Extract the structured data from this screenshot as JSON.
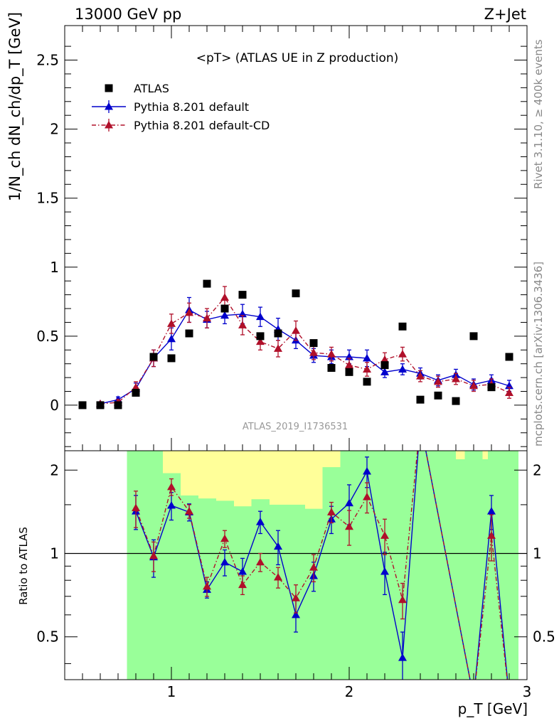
{
  "header": {
    "left": "13000 GeV pp",
    "right": "Z+Jet"
  },
  "side_labels": {
    "rivet": "Rivet 3.1.10, ≥ 400k events",
    "mcplots": "mcplots.cern.ch [arXiv:1306.3436]"
  },
  "chart_data": [
    {
      "type": "scatter",
      "panel": "main",
      "title": "<pT> (ATLAS UE in Z production)",
      "ylabel": "1/N_ch dN_ch/dp_T [GeV]",
      "watermark": "ATLAS_2019_I1736531",
      "ylim": [
        -0.33,
        2.75
      ],
      "yticks": [
        0,
        0.5,
        1,
        1.5,
        2,
        2.5
      ],
      "ytick_labels": [
        "0",
        "0.5",
        "1",
        "1.5",
        "2",
        "2.5"
      ],
      "xlim": [
        0.4,
        3.0
      ],
      "x": [
        0.5,
        0.6,
        0.7,
        0.8,
        0.9,
        1.0,
        1.1,
        1.2,
        1.3,
        1.4,
        1.5,
        1.6,
        1.7,
        1.8,
        1.9,
        2.0,
        2.1,
        2.2,
        2.3,
        2.4,
        2.5,
        2.6,
        2.7,
        2.8,
        2.9
      ],
      "legend_position": "top-left",
      "series": [
        {
          "name": "ATLAS",
          "color": "#000000",
          "marker": "square",
          "values": [
            0.0,
            0.0,
            0.0,
            0.09,
            0.35,
            0.34,
            0.52,
            0.88,
            0.7,
            0.8,
            0.5,
            0.52,
            0.81,
            0.45,
            0.27,
            0.24,
            0.17,
            0.29,
            0.57,
            0.04,
            0.07,
            0.03,
            0.5,
            0.13,
            0.35
          ]
        },
        {
          "name": "Pythia 8.201 default",
          "color": "#0000cc",
          "marker": "triangle",
          "x": [
            0.6,
            0.7,
            0.8,
            0.9,
            1.0,
            1.1,
            1.2,
            1.3,
            1.4,
            1.5,
            1.6,
            1.7,
            1.8,
            1.9,
            2.0,
            2.1,
            2.2,
            2.3,
            2.4,
            2.5,
            2.6,
            2.7,
            2.8,
            2.9
          ],
          "values": [
            0.01,
            0.04,
            0.12,
            0.34,
            0.48,
            0.69,
            0.62,
            0.65,
            0.66,
            0.64,
            0.55,
            0.47,
            0.36,
            0.35,
            0.35,
            0.34,
            0.24,
            0.26,
            0.23,
            0.18,
            0.22,
            0.15,
            0.18,
            0.14
          ],
          "errors": [
            0.01,
            0.02,
            0.04,
            0.06,
            0.08,
            0.09,
            0.06,
            0.06,
            0.07,
            0.07,
            0.08,
            0.06,
            0.05,
            0.05,
            0.05,
            0.06,
            0.04,
            0.04,
            0.04,
            0.04,
            0.04,
            0.04,
            0.04,
            0.04
          ],
          "line": "solid"
        },
        {
          "name": "Pythia 8.201 default-CD",
          "color": "#b0102a",
          "marker": "triangle",
          "x": [
            0.6,
            0.7,
            0.8,
            0.9,
            1.0,
            1.1,
            1.2,
            1.3,
            1.4,
            1.5,
            1.6,
            1.7,
            1.8,
            1.9,
            2.0,
            2.1,
            2.2,
            2.3,
            2.4,
            2.5,
            2.6,
            2.7,
            2.8,
            2.9
          ],
          "values": [
            0.01,
            0.02,
            0.13,
            0.34,
            0.59,
            0.67,
            0.63,
            0.78,
            0.58,
            0.46,
            0.41,
            0.54,
            0.38,
            0.37,
            0.29,
            0.26,
            0.33,
            0.37,
            0.21,
            0.17,
            0.19,
            0.14,
            0.15,
            0.09
          ],
          "errors": [
            0.01,
            0.02,
            0.04,
            0.06,
            0.07,
            0.07,
            0.07,
            0.08,
            0.07,
            0.06,
            0.06,
            0.07,
            0.05,
            0.05,
            0.05,
            0.05,
            0.05,
            0.05,
            0.04,
            0.04,
            0.04,
            0.04,
            0.04,
            0.04
          ],
          "line": "dash-dot"
        }
      ]
    },
    {
      "type": "line",
      "panel": "ratio",
      "ylabel": "Ratio to ATLAS",
      "xlabel": "p_T [GeV]",
      "ylim": [
        0.35,
        2.35
      ],
      "yscale": "log",
      "yticks": [
        0.5,
        1,
        2
      ],
      "ytick_labels": [
        "0.5",
        "1",
        "2"
      ],
      "xlim": [
        0.4,
        3.0
      ],
      "xticks": [
        1,
        2,
        3
      ],
      "xtick_labels": [
        "1",
        "2",
        "3"
      ],
      "reference_line": 1,
      "bands": {
        "bin_edges": [
          0.75,
          0.85,
          0.95,
          1.05,
          1.15,
          1.25,
          1.35,
          1.45,
          1.55,
          1.65,
          1.75,
          1.85,
          1.95,
          2.05,
          2.15,
          2.25,
          2.35,
          2.45,
          2.55,
          2.65,
          2.75,
          2.85,
          2.95
        ],
        "green_lo": [
          0.35,
          0.35,
          0.35,
          0.35,
          0.35,
          0.35,
          0.35,
          0.35,
          0.35,
          0.35,
          0.35,
          0.35,
          0.35,
          0.35,
          0.35,
          0.35,
          0.35,
          0.35,
          0.35,
          0.35,
          0.35,
          0.35
        ],
        "green_hi": [
          2.35,
          2.35,
          1.95,
          1.62,
          1.58,
          1.55,
          1.48,
          1.57,
          1.5,
          1.5,
          1.45,
          2.05,
          2.35,
          2.35,
          2.35,
          2.35,
          2.35,
          2.35,
          2.35,
          2.35,
          2.35,
          2.35
        ],
        "yellow_lo": [
          0.35,
          0.35,
          0.35,
          0.35,
          0.35,
          0.64,
          0.65,
          0.62,
          0.54,
          0.55,
          0.69,
          0.35,
          0.35,
          0.35,
          0.35,
          0.35,
          0.35,
          0.35,
          0.35,
          0.35,
          0.35,
          0.35
        ],
        "yellow_hi": [
          2.35,
          2.35,
          2.35,
          2.35,
          2.35,
          2.35,
          2.35,
          2.35,
          2.35,
          2.35,
          2.35,
          2.35,
          2.35,
          2.35,
          2.35,
          2.35,
          2.35,
          2.35,
          2.35,
          2.35,
          2.35,
          2.35
        ]
      },
      "series": [
        {
          "name": "Pythia 8.201 default",
          "color": "#0000cc",
          "x": [
            0.8,
            0.9,
            1.0,
            1.1,
            1.2,
            1.3,
            1.4,
            1.5,
            1.6,
            1.7,
            1.8,
            1.9,
            2.0,
            2.1,
            2.2,
            2.3,
            2.4,
            2.7,
            2.8,
            2.9
          ],
          "values": [
            1.42,
            0.97,
            1.49,
            1.41,
            0.74,
            0.93,
            0.86,
            1.3,
            1.06,
            0.6,
            0.83,
            1.33,
            1.52,
            1.98,
            0.86,
            0.42,
            6.0,
            0.3,
            1.42,
            0.3
          ],
          "errors": [
            0.2,
            0.15,
            0.17,
            0.1,
            0.05,
            0.1,
            0.1,
            0.12,
            0.15,
            0.08,
            0.1,
            0.15,
            0.25,
            0.25,
            0.15,
            0.1,
            0.0,
            0.0,
            0.2,
            0.0
          ]
        },
        {
          "name": "Pythia 8.201 default-CD",
          "color": "#b0102a",
          "x": [
            0.8,
            0.9,
            1.0,
            1.1,
            1.2,
            1.3,
            1.4,
            1.5,
            1.6,
            1.7,
            1.8,
            1.9,
            2.0,
            2.1,
            2.2,
            2.3,
            2.4,
            2.7,
            2.8,
            2.9
          ],
          "values": [
            1.46,
            0.98,
            1.74,
            1.42,
            0.76,
            1.13,
            0.77,
            0.93,
            0.82,
            0.69,
            0.89,
            1.41,
            1.25,
            1.6,
            1.16,
            0.68,
            6.0,
            0.3,
            1.16,
            0.3
          ],
          "errors": [
            0.22,
            0.12,
            0.12,
            0.08,
            0.06,
            0.08,
            0.06,
            0.07,
            0.07,
            0.08,
            0.1,
            0.12,
            0.18,
            0.2,
            0.17,
            0.1,
            0.0,
            0.0,
            0.22,
            0.0
          ]
        }
      ]
    }
  ]
}
